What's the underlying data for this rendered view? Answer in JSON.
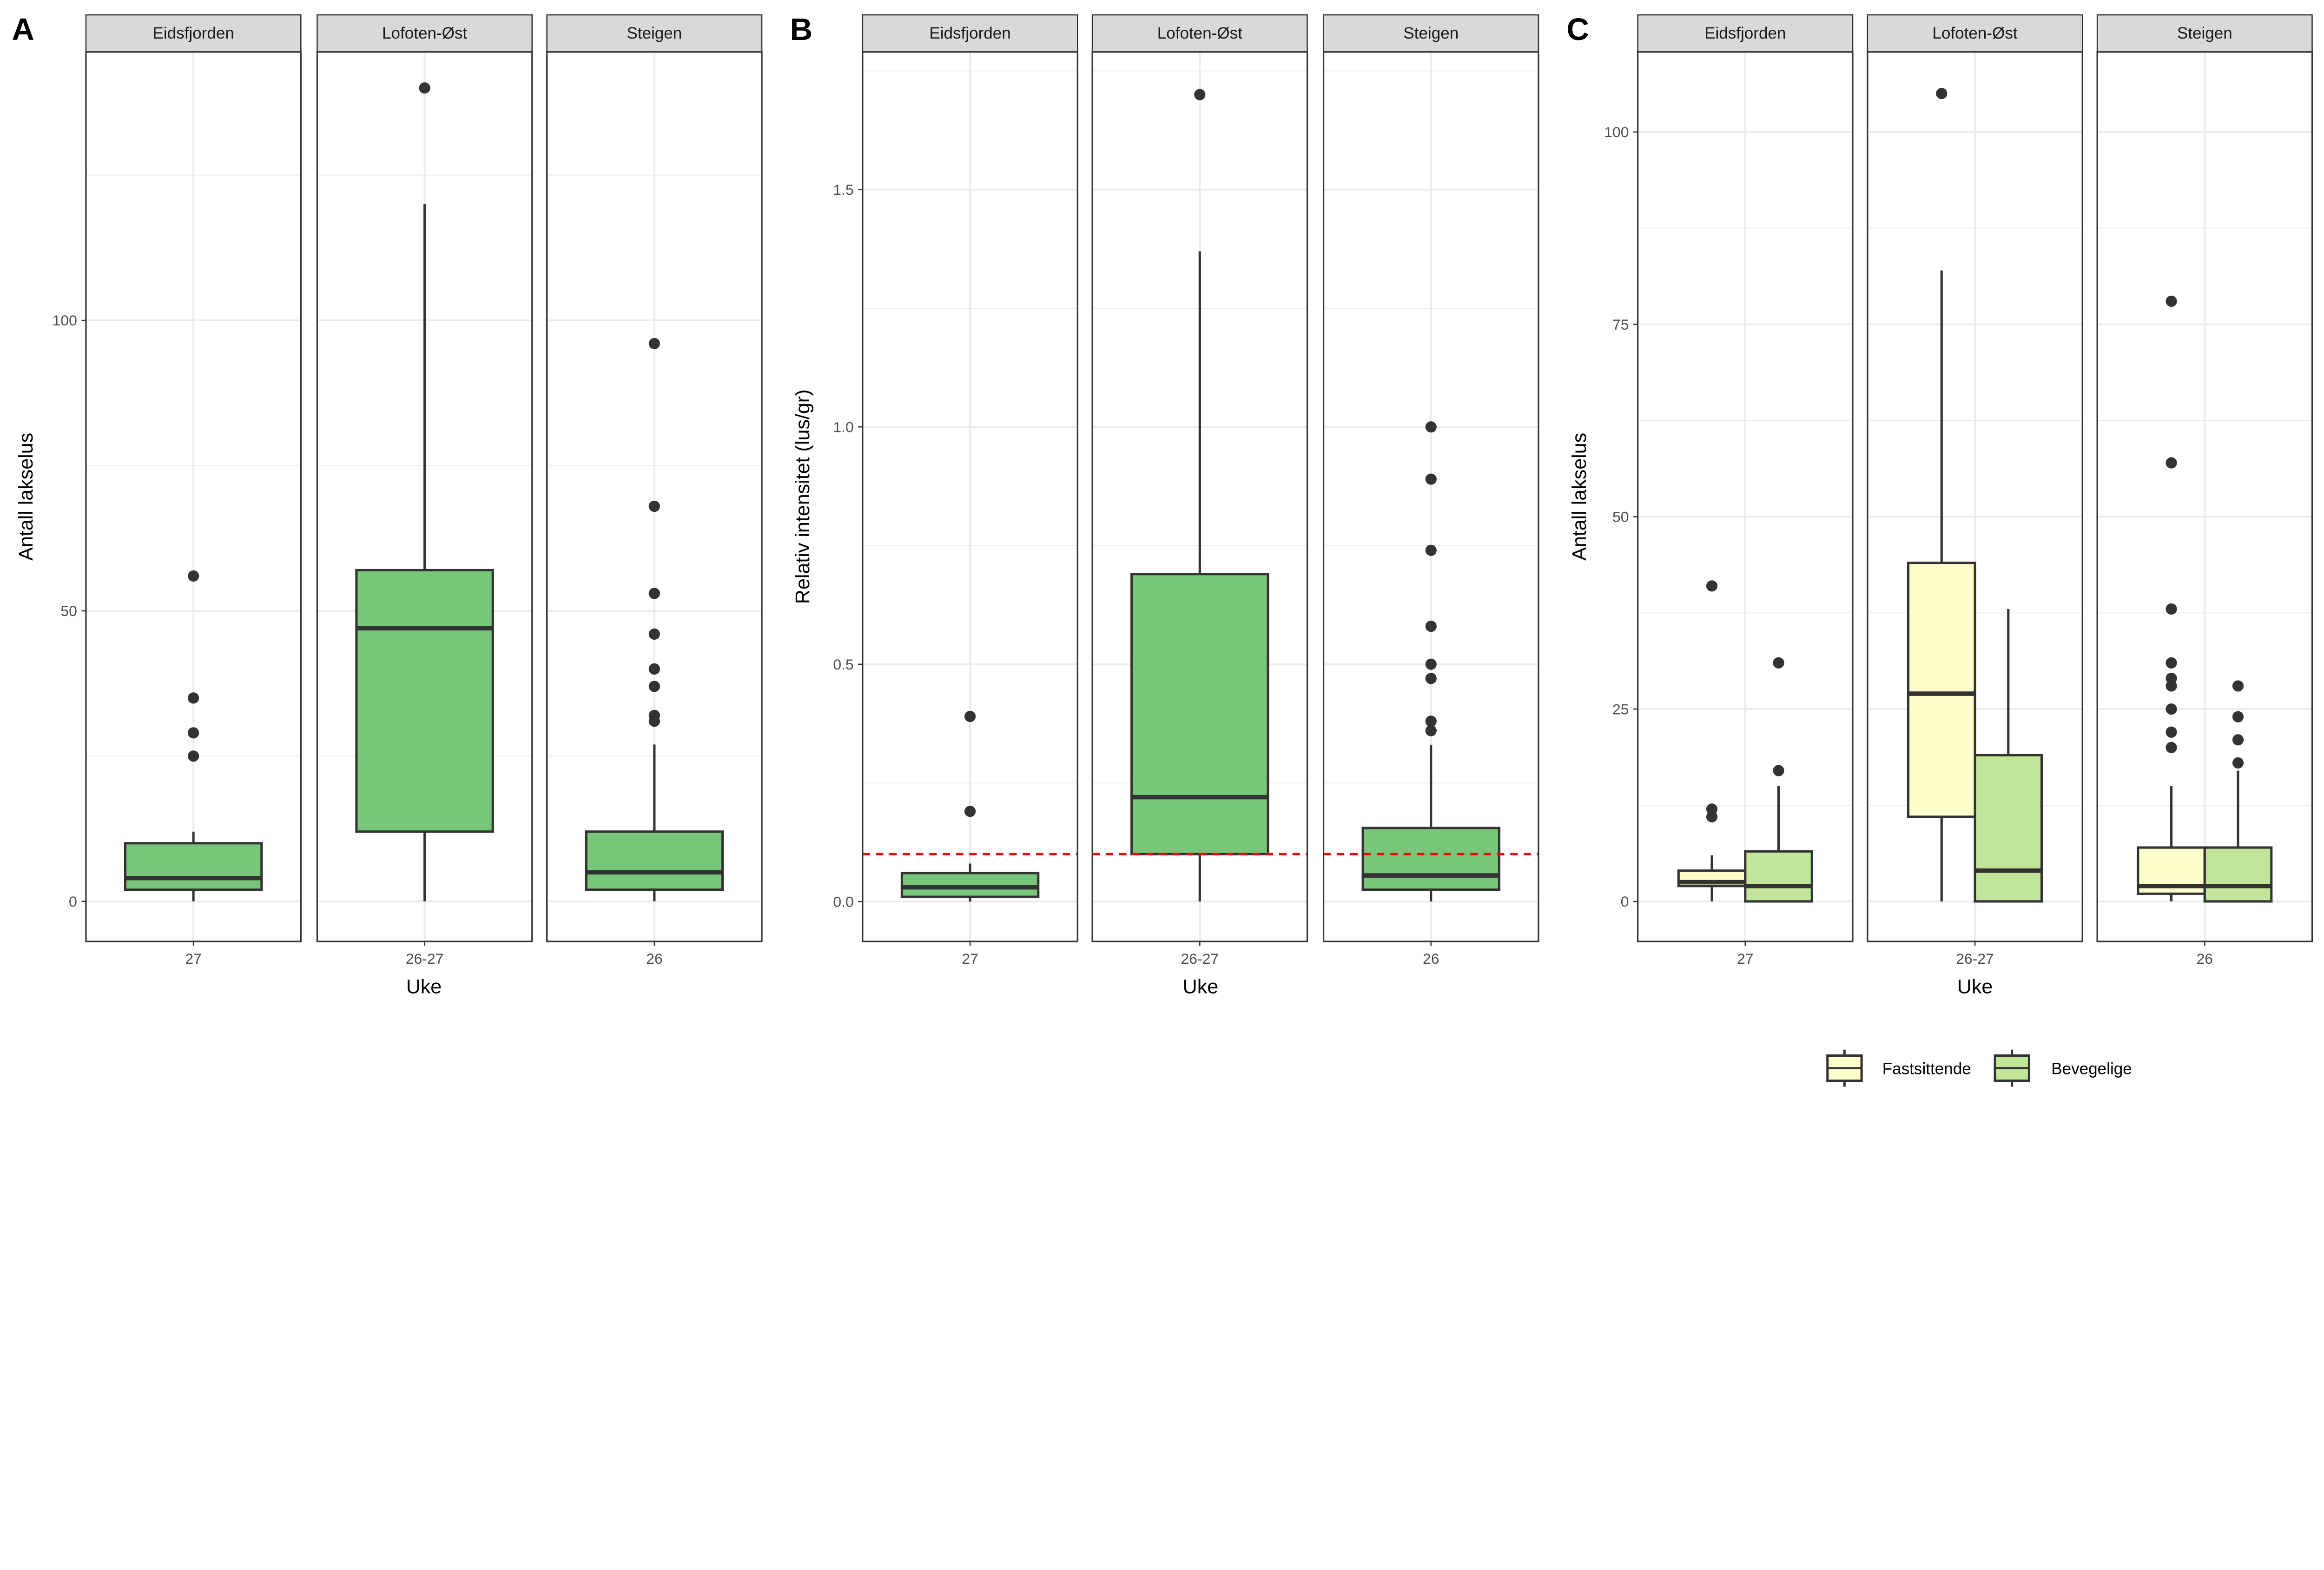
{
  "colors": {
    "green": "#78C679",
    "fast": "#FFFFCC",
    "bev": "#C2E699",
    "dash": "#FF0000",
    "outline": "#333333"
  },
  "chart_data": [
    {
      "type": "boxplot",
      "panel_label": "A",
      "ylabel": "Antall lakselus",
      "xlabel": "Uke",
      "ylim": [
        -6.9,
        146.2
      ],
      "yticks": [
        0,
        50,
        100
      ],
      "yminor": [
        25,
        75,
        125
      ],
      "facets": [
        {
          "strip": "Eidsfjorden",
          "x": "27",
          "boxes": [
            {
              "series": "all",
              "whisker_low": 0,
              "q1": 2,
              "median": 4,
              "q3": 10,
              "whisker_high": 12,
              "outliers": [
                25,
                29,
                35,
                56
              ]
            }
          ]
        },
        {
          "strip": "Lofoten-Øst",
          "x": "26-27",
          "boxes": [
            {
              "series": "all",
              "whisker_low": 0,
              "q1": 12,
              "median": 47,
              "q3": 57,
              "whisker_high": 120,
              "outliers": [
                140
              ]
            }
          ]
        },
        {
          "strip": "Steigen",
          "x": "26",
          "boxes": [
            {
              "series": "all",
              "whisker_low": 0,
              "q1": 2,
              "median": 5,
              "q3": 12,
              "whisker_high": 27,
              "outliers": [
                31,
                32,
                37,
                40,
                46,
                53,
                68,
                96
              ]
            }
          ]
        }
      ]
    },
    {
      "type": "boxplot",
      "panel_label": "B",
      "ylabel": "Relativ intensitet (lus/gr)",
      "xlabel": "Uke",
      "ylim": [
        -0.084,
        1.79
      ],
      "yticks": [
        0.0,
        0.5,
        1.0,
        1.5
      ],
      "ytick_labels": [
        "0.0",
        "0.5",
        "1.0",
        "1.5"
      ],
      "yminor": [
        0.25,
        0.75,
        1.25,
        1.75
      ],
      "hline": 0.1,
      "facets": [
        {
          "strip": "Eidsfjorden",
          "x": "27",
          "boxes": [
            {
              "series": "all",
              "whisker_low": 0,
              "q1": 0.01,
              "median": 0.03,
              "q3": 0.06,
              "whisker_high": 0.08,
              "outliers": [
                0.19,
                0.39
              ]
            }
          ]
        },
        {
          "strip": "Lofoten-Øst",
          "x": "26-27",
          "boxes": [
            {
              "series": "all",
              "whisker_low": 0,
              "q1": 0.1,
              "median": 0.22,
              "q3": 0.69,
              "whisker_high": 1.37,
              "outliers": [
                1.7
              ]
            }
          ]
        },
        {
          "strip": "Steigen",
          "x": "26",
          "boxes": [
            {
              "series": "all",
              "whisker_low": 0,
              "q1": 0.025,
              "median": 0.055,
              "q3": 0.155,
              "whisker_high": 0.33,
              "outliers": [
                0.36,
                0.38,
                0.47,
                0.5,
                0.58,
                0.74,
                0.89,
                1.0
              ]
            }
          ]
        }
      ]
    },
    {
      "type": "boxplot",
      "panel_label": "C",
      "ylabel": "Antall lakselus",
      "xlabel": "Uke",
      "ylim": [
        -5.2,
        110.4
      ],
      "yticks": [
        0,
        25,
        50,
        75,
        100
      ],
      "yminor": [
        12.5,
        37.5,
        62.5,
        87.5
      ],
      "legend": {
        "position": "bottom",
        "entries": [
          "Fastsittende",
          "Bevegelige"
        ]
      },
      "facets": [
        {
          "strip": "Eidsfjorden",
          "x": "27",
          "boxes": [
            {
              "series": "Fastsittende",
              "whisker_low": 0,
              "q1": 2,
              "median": 2.5,
              "q3": 4,
              "whisker_high": 6,
              "outliers": [
                11,
                12,
                41
              ]
            },
            {
              "series": "Bevegelige",
              "whisker_low": 0,
              "q1": 0,
              "median": 2,
              "q3": 6.5,
              "whisker_high": 15,
              "outliers": [
                17,
                31
              ]
            }
          ]
        },
        {
          "strip": "Lofoten-Øst",
          "x": "26-27",
          "boxes": [
            {
              "series": "Fastsittende",
              "whisker_low": 0,
              "q1": 11,
              "median": 27,
              "q3": 44,
              "whisker_high": 82,
              "outliers": [
                105
              ]
            },
            {
              "series": "Bevegelige",
              "whisker_low": 0,
              "q1": 0,
              "median": 4,
              "q3": 19,
              "whisker_high": 38,
              "outliers": []
            }
          ]
        },
        {
          "strip": "Steigen",
          "x": "26",
          "boxes": [
            {
              "series": "Fastsittende",
              "whisker_low": 0,
              "q1": 1,
              "median": 2,
              "q3": 7,
              "whisker_high": 15,
              "outliers": [
                20,
                22,
                25,
                28,
                29,
                31,
                38,
                57,
                78
              ]
            },
            {
              "series": "Bevegelige",
              "whisker_low": 0,
              "q1": 0,
              "median": 2,
              "q3": 7,
              "whisker_high": 17,
              "outliers": [
                18,
                21,
                24,
                28
              ]
            }
          ]
        }
      ]
    }
  ]
}
